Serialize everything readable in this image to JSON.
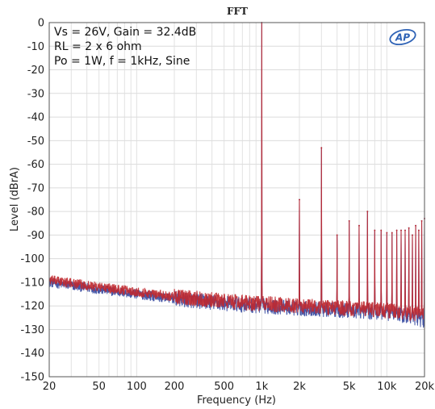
{
  "chart_data": {
    "type": "line",
    "title": "FFT",
    "xlabel": "Frequency (Hz)",
    "ylabel": "Level (dBrA)",
    "x_scale": "log",
    "xlim": [
      20,
      20000
    ],
    "ylim": [
      -150,
      0
    ],
    "x_ticks": [
      {
        "value": 20,
        "label": "20"
      },
      {
        "value": 50,
        "label": "50"
      },
      {
        "value": 100,
        "label": "100"
      },
      {
        "value": 200,
        "label": "200"
      },
      {
        "value": 500,
        "label": "500"
      },
      {
        "value": 1000,
        "label": "1k"
      },
      {
        "value": 2000,
        "label": "2k"
      },
      {
        "value": 5000,
        "label": "5k"
      },
      {
        "value": 10000,
        "label": "10k"
      },
      {
        "value": 20000,
        "label": "20k"
      }
    ],
    "y_ticks": [
      0,
      -10,
      -20,
      -30,
      -40,
      -50,
      -60,
      -70,
      -80,
      -90,
      -100,
      -110,
      -120,
      -130,
      -140,
      -150
    ],
    "grid": true,
    "annotations": [
      "Vs = 26V, Gain = 32.4dB",
      "RL = 2 x 6 ohm",
      "Po = 1W, f = 1kHz, Sine"
    ],
    "logo": "AP",
    "series": [
      {
        "color": "#3c4fa3",
        "noise_floor": [
          [
            20,
            -110
          ],
          [
            50,
            -113
          ],
          [
            100,
            -115
          ],
          [
            200,
            -117
          ],
          [
            500,
            -119
          ],
          [
            1000,
            -120
          ],
          [
            2000,
            -121
          ],
          [
            5000,
            -122
          ],
          [
            10000,
            -123
          ],
          [
            20000,
            -126
          ]
        ],
        "peaks": [
          [
            1000,
            0
          ],
          [
            2000,
            -75
          ],
          [
            3000,
            -53
          ],
          [
            4000,
            -90
          ],
          [
            5000,
            -84
          ],
          [
            6000,
            -86
          ],
          [
            7000,
            -80
          ],
          [
            8000,
            -88
          ],
          [
            9000,
            -88
          ],
          [
            10000,
            -89
          ],
          [
            11000,
            -89
          ],
          [
            12000,
            -88
          ],
          [
            13000,
            -88
          ],
          [
            14000,
            -88
          ],
          [
            15000,
            -87
          ],
          [
            16000,
            -90
          ],
          [
            17000,
            -86
          ],
          [
            18000,
            -88
          ],
          [
            19000,
            -84
          ],
          [
            20000,
            -83
          ]
        ]
      },
      {
        "color": "#c0282d",
        "noise_floor": [
          [
            20,
            -109
          ],
          [
            50,
            -112
          ],
          [
            100,
            -114
          ],
          [
            200,
            -116
          ],
          [
            500,
            -118
          ],
          [
            1000,
            -119
          ],
          [
            2000,
            -120
          ],
          [
            5000,
            -121
          ],
          [
            10000,
            -122
          ],
          [
            20000,
            -124
          ]
        ],
        "peaks": [
          [
            1000,
            0
          ],
          [
            2000,
            -75
          ],
          [
            3000,
            -53
          ],
          [
            4000,
            -90
          ],
          [
            5000,
            -84
          ],
          [
            6000,
            -86
          ],
          [
            7000,
            -80
          ],
          [
            8000,
            -88
          ],
          [
            9000,
            -88
          ],
          [
            10000,
            -89
          ],
          [
            11000,
            -89
          ],
          [
            12000,
            -88
          ],
          [
            13000,
            -88
          ],
          [
            14000,
            -88
          ],
          [
            15000,
            -87
          ],
          [
            16000,
            -90
          ],
          [
            17000,
            -86
          ],
          [
            18000,
            -88
          ],
          [
            19000,
            -84
          ],
          [
            20000,
            -83
          ]
        ]
      }
    ]
  }
}
